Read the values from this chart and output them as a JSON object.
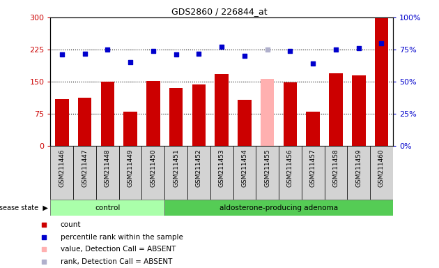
{
  "title": "GDS2860 / 226844_at",
  "samples": [
    "GSM211446",
    "GSM211447",
    "GSM211448",
    "GSM211449",
    "GSM211450",
    "GSM211451",
    "GSM211452",
    "GSM211453",
    "GSM211454",
    "GSM211455",
    "GSM211456",
    "GSM211457",
    "GSM211458",
    "GSM211459",
    "GSM211460"
  ],
  "bar_values": [
    110,
    112,
    150,
    80,
    152,
    135,
    143,
    168,
    108,
    157,
    148,
    80,
    170,
    165,
    298
  ],
  "bar_colors": [
    "#cc0000",
    "#cc0000",
    "#cc0000",
    "#cc0000",
    "#cc0000",
    "#cc0000",
    "#cc0000",
    "#cc0000",
    "#cc0000",
    "#ffb0b0",
    "#cc0000",
    "#cc0000",
    "#cc0000",
    "#cc0000",
    "#cc0000"
  ],
  "dot_percentiles": [
    71,
    72,
    75,
    65,
    74,
    71,
    72,
    77,
    70,
    75,
    74,
    64,
    75,
    76,
    80
  ],
  "dot_colors": [
    "#0000cc",
    "#0000cc",
    "#0000cc",
    "#0000cc",
    "#0000cc",
    "#0000cc",
    "#0000cc",
    "#0000cc",
    "#0000cc",
    "#b0b0cc",
    "#0000cc",
    "#0000cc",
    "#0000cc",
    "#0000cc",
    "#0000cc"
  ],
  "control_count": 5,
  "adenoma_count": 10,
  "ylim_left": [
    0,
    300
  ],
  "ylim_right": [
    0,
    100
  ],
  "yticks_left": [
    0,
    75,
    150,
    225,
    300
  ],
  "yticks_right": [
    0,
    25,
    50,
    75,
    100
  ],
  "ytick_labels_left": [
    "0",
    "75",
    "150",
    "225",
    "300"
  ],
  "ytick_labels_right": [
    "0%",
    "25%",
    "50%",
    "75%",
    "100%"
  ],
  "bg_color": "#ffffff",
  "bar_width": 0.6,
  "control_label": "control",
  "adenoma_label": "aldosterone-producing adenoma",
  "disease_state_label": "disease state",
  "legend_items": [
    {
      "label": "count",
      "color": "#cc0000"
    },
    {
      "label": "percentile rank within the sample",
      "color": "#0000cc"
    },
    {
      "label": "value, Detection Call = ABSENT",
      "color": "#ffb0b0"
    },
    {
      "label": "rank, Detection Call = ABSENT",
      "color": "#b0b0cc"
    }
  ]
}
